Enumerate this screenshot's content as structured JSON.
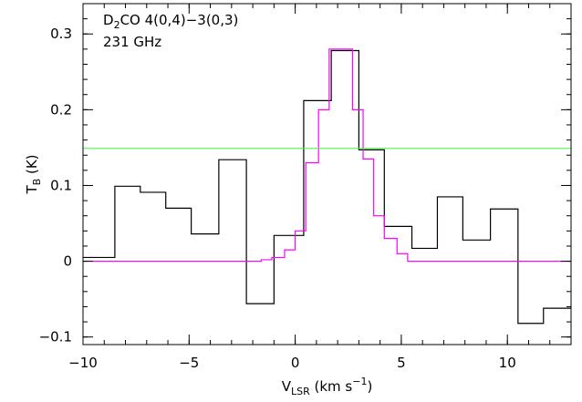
{
  "chart_data": {
    "type": "line",
    "annotation": {
      "line1": {
        "base": "D",
        "sub": "2",
        "rest": "CO 4(0,4)−3(0,3)"
      },
      "line2": "231 GHz"
    },
    "xlabel": {
      "base": "V",
      "sub": "LSR",
      "rest": " (km s",
      "sup": "−1",
      "close": ")"
    },
    "ylabel": {
      "base": "T",
      "sub": "B",
      "rest": " (K)"
    },
    "xlim": [
      -10,
      13
    ],
    "ylim": [
      -0.11,
      0.34
    ],
    "xticks": [
      {
        "value": -10,
        "label": "−10"
      },
      {
        "value": -5,
        "label": "−5"
      },
      {
        "value": 0,
        "label": "0"
      },
      {
        "value": 5,
        "label": "5"
      },
      {
        "value": 10,
        "label": "10"
      }
    ],
    "yticks": [
      {
        "value": -0.1,
        "label": "−0.1"
      },
      {
        "value": 0,
        "label": "0"
      },
      {
        "value": 0.1,
        "label": "0.1"
      },
      {
        "value": 0.2,
        "label": "0.2"
      },
      {
        "value": 0.3,
        "label": "0.3"
      }
    ],
    "series": [
      {
        "style": "histogram",
        "color": "#000000",
        "x": [
          -10.0,
          -8.5,
          -7.3,
          -6.1,
          -4.9,
          -3.6,
          -2.3,
          -1.0,
          0.4,
          1.7,
          3.0,
          4.2,
          5.5,
          6.7,
          7.9,
          9.2,
          10.5,
          11.7
        ],
        "y": [
          0.005,
          0.099,
          0.091,
          0.07,
          0.036,
          0.134,
          -0.056,
          0.034,
          0.212,
          0.278,
          0.147,
          0.046,
          0.017,
          0.085,
          0.028,
          0.069,
          -0.082,
          -0.062
        ],
        "x_end": 13.0
      },
      {
        "style": "histogram",
        "color": "#ff00ff",
        "x": [
          -10.0,
          -2.3,
          -1.6,
          -1.1,
          -0.5,
          0.0,
          0.5,
          1.1,
          1.6,
          2.1,
          2.7,
          3.2,
          3.7,
          4.2,
          4.8,
          5.3,
          13.0
        ],
        "y": [
          0.0,
          0.0,
          0.002,
          0.005,
          0.015,
          0.04,
          0.13,
          0.2,
          0.28,
          0.28,
          0.2,
          0.135,
          0.06,
          0.03,
          0.01,
          0.0,
          0.0
        ],
        "x_end": 13.0
      },
      {
        "style": "hline",
        "color": "#33ff33",
        "y": 0.149
      }
    ]
  }
}
